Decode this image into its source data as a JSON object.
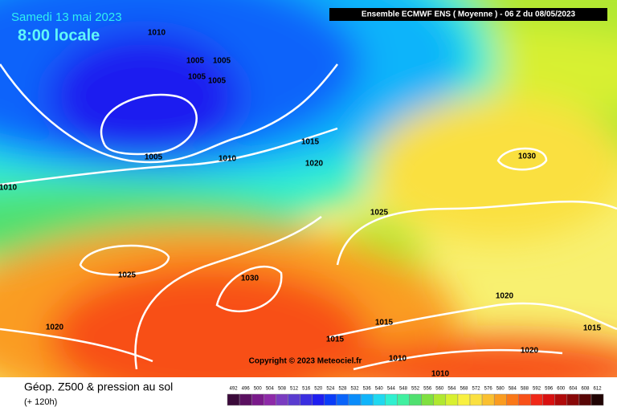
{
  "header": {
    "date": "Samedi 13 mai 2023",
    "time": "8:00 locale",
    "model": "Ensemble ECMWF ENS  ( Moyenne )  -  06 Z du 08/05/2023"
  },
  "isobar_labels": [
    "1010",
    "1005",
    "1005",
    "1005",
    "1005",
    "1005",
    "1010",
    "1015",
    "1020",
    "1010",
    "1025",
    "1030",
    "1025",
    "1030",
    "1020",
    "1015",
    "1015",
    "1020",
    "1015",
    "1020",
    "1010",
    "1010"
  ],
  "copyright": "Copyright © 2023 Meteociel.fr",
  "footer": {
    "title": "Géop. Z500 & pression au sol",
    "lead": "(+ 120h)"
  },
  "legend": [
    {
      "label": "492",
      "color": "#3a0a3a"
    },
    {
      "label": "496",
      "color": "#5a1060"
    },
    {
      "label": "500",
      "color": "#7a1a8a"
    },
    {
      "label": "504",
      "color": "#8e2aa8"
    },
    {
      "label": "508",
      "color": "#7a3cc0"
    },
    {
      "label": "512",
      "color": "#5a3cd0"
    },
    {
      "label": "516",
      "color": "#3a2ee0"
    },
    {
      "label": "520",
      "color": "#1e1ef0"
    },
    {
      "label": "524",
      "color": "#0a3cf8"
    },
    {
      "label": "528",
      "color": "#0a64fa"
    },
    {
      "label": "532",
      "color": "#0a8cfa"
    },
    {
      "label": "536",
      "color": "#10b4fa"
    },
    {
      "label": "540",
      "color": "#20d8f0"
    },
    {
      "label": "544",
      "color": "#30f0d0"
    },
    {
      "label": "548",
      "color": "#40f0a0"
    },
    {
      "label": "552",
      "color": "#50e070"
    },
    {
      "label": "556",
      "color": "#80e040"
    },
    {
      "label": "560",
      "color": "#b0e830"
    },
    {
      "label": "564",
      "color": "#d8f030"
    },
    {
      "label": "568",
      "color": "#f8f040"
    },
    {
      "label": "572",
      "color": "#fae040"
    },
    {
      "label": "576",
      "color": "#fac030"
    },
    {
      "label": "580",
      "color": "#fa9c20"
    },
    {
      "label": "584",
      "color": "#fa7818"
    },
    {
      "label": "588",
      "color": "#f85018"
    },
    {
      "label": "592",
      "color": "#f02818"
    },
    {
      "label": "596",
      "color": "#d81010"
    },
    {
      "label": "600",
      "color": "#b00a0a"
    },
    {
      "label": "604",
      "color": "#880808"
    },
    {
      "label": "608",
      "color": "#580606"
    },
    {
      "label": "612",
      "color": "#200404"
    }
  ]
}
